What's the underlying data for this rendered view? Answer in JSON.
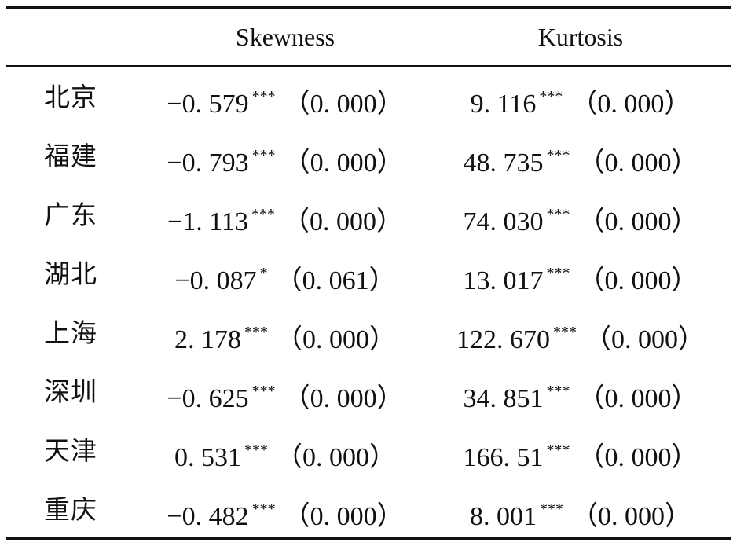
{
  "table": {
    "headers": {
      "region": "",
      "skewness": "Skewness",
      "kurtosis": "Kurtosis"
    },
    "rows": [
      {
        "region": "北京",
        "skew": "−0. 579",
        "skew_sig": "***",
        "skew_p": "（0. 000）",
        "kurt": "9. 116",
        "kurt_sig": "***",
        "kurt_p": "（0. 000）"
      },
      {
        "region": "福建",
        "skew": "−0. 793",
        "skew_sig": "***",
        "skew_p": "（0. 000）",
        "kurt": "48. 735",
        "kurt_sig": "***",
        "kurt_p": "（0. 000）"
      },
      {
        "region": "广东",
        "skew": "−1. 113",
        "skew_sig": "***",
        "skew_p": "（0. 000）",
        "kurt": "74. 030",
        "kurt_sig": "***",
        "kurt_p": "（0. 000）"
      },
      {
        "region": "湖北",
        "skew": "−0. 087",
        "skew_sig": "*",
        "skew_p": "（0. 061）",
        "kurt": "13. 017",
        "kurt_sig": "***",
        "kurt_p": "（0. 000）"
      },
      {
        "region": "上海",
        "skew": "2. 178",
        "skew_sig": "***",
        "skew_p": "（0. 000）",
        "kurt": "122. 670",
        "kurt_sig": "***",
        "kurt_p": "（0. 000）"
      },
      {
        "region": "深圳",
        "skew": "−0. 625",
        "skew_sig": "***",
        "skew_p": "（0. 000）",
        "kurt": "34. 851",
        "kurt_sig": "***",
        "kurt_p": "（0. 000）"
      },
      {
        "region": "天津",
        "skew": "0. 531",
        "skew_sig": "***",
        "skew_p": "（0. 000）",
        "kurt": "166. 51",
        "kurt_sig": "***",
        "kurt_p": "（0. 000）"
      },
      {
        "region": "重庆",
        "skew": "−0. 482",
        "skew_sig": "***",
        "skew_p": "（0. 000）",
        "kurt": "8. 001",
        "kurt_sig": "***",
        "kurt_p": "（0. 000）"
      }
    ]
  }
}
